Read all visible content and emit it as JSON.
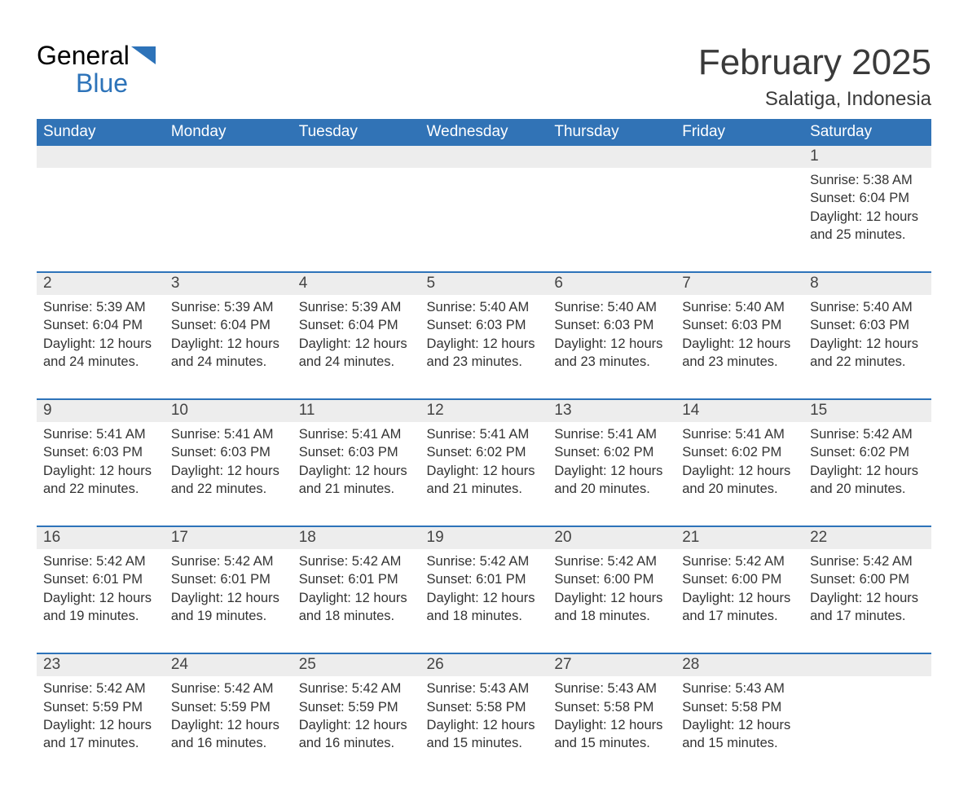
{
  "logo": {
    "text_general": "General",
    "text_blue": "Blue",
    "icon_color": "#2d73b9"
  },
  "title": "February 2025",
  "location": "Salatiga, Indonesia",
  "colors": {
    "header_bg": "#3173b6",
    "header_text": "#ffffff",
    "daynum_bg": "#ededed",
    "week_divider": "#2d73b9",
    "body_text": "#333333",
    "page_bg": "#ffffff"
  },
  "weekdays": [
    "Sunday",
    "Monday",
    "Tuesday",
    "Wednesday",
    "Thursday",
    "Friday",
    "Saturday"
  ],
  "weeks": [
    [
      null,
      null,
      null,
      null,
      null,
      null,
      {
        "n": "1",
        "sunrise": "5:38 AM",
        "sunset": "6:04 PM",
        "daylight": "12 hours and 25 minutes."
      }
    ],
    [
      {
        "n": "2",
        "sunrise": "5:39 AM",
        "sunset": "6:04 PM",
        "daylight": "12 hours and 24 minutes."
      },
      {
        "n": "3",
        "sunrise": "5:39 AM",
        "sunset": "6:04 PM",
        "daylight": "12 hours and 24 minutes."
      },
      {
        "n": "4",
        "sunrise": "5:39 AM",
        "sunset": "6:04 PM",
        "daylight": "12 hours and 24 minutes."
      },
      {
        "n": "5",
        "sunrise": "5:40 AM",
        "sunset": "6:03 PM",
        "daylight": "12 hours and 23 minutes."
      },
      {
        "n": "6",
        "sunrise": "5:40 AM",
        "sunset": "6:03 PM",
        "daylight": "12 hours and 23 minutes."
      },
      {
        "n": "7",
        "sunrise": "5:40 AM",
        "sunset": "6:03 PM",
        "daylight": "12 hours and 23 minutes."
      },
      {
        "n": "8",
        "sunrise": "5:40 AM",
        "sunset": "6:03 PM",
        "daylight": "12 hours and 22 minutes."
      }
    ],
    [
      {
        "n": "9",
        "sunrise": "5:41 AM",
        "sunset": "6:03 PM",
        "daylight": "12 hours and 22 minutes."
      },
      {
        "n": "10",
        "sunrise": "5:41 AM",
        "sunset": "6:03 PM",
        "daylight": "12 hours and 22 minutes."
      },
      {
        "n": "11",
        "sunrise": "5:41 AM",
        "sunset": "6:03 PM",
        "daylight": "12 hours and 21 minutes."
      },
      {
        "n": "12",
        "sunrise": "5:41 AM",
        "sunset": "6:02 PM",
        "daylight": "12 hours and 21 minutes."
      },
      {
        "n": "13",
        "sunrise": "5:41 AM",
        "sunset": "6:02 PM",
        "daylight": "12 hours and 20 minutes."
      },
      {
        "n": "14",
        "sunrise": "5:41 AM",
        "sunset": "6:02 PM",
        "daylight": "12 hours and 20 minutes."
      },
      {
        "n": "15",
        "sunrise": "5:42 AM",
        "sunset": "6:02 PM",
        "daylight": "12 hours and 20 minutes."
      }
    ],
    [
      {
        "n": "16",
        "sunrise": "5:42 AM",
        "sunset": "6:01 PM",
        "daylight": "12 hours and 19 minutes."
      },
      {
        "n": "17",
        "sunrise": "5:42 AM",
        "sunset": "6:01 PM",
        "daylight": "12 hours and 19 minutes."
      },
      {
        "n": "18",
        "sunrise": "5:42 AM",
        "sunset": "6:01 PM",
        "daylight": "12 hours and 18 minutes."
      },
      {
        "n": "19",
        "sunrise": "5:42 AM",
        "sunset": "6:01 PM",
        "daylight": "12 hours and 18 minutes."
      },
      {
        "n": "20",
        "sunrise": "5:42 AM",
        "sunset": "6:00 PM",
        "daylight": "12 hours and 18 minutes."
      },
      {
        "n": "21",
        "sunrise": "5:42 AM",
        "sunset": "6:00 PM",
        "daylight": "12 hours and 17 minutes."
      },
      {
        "n": "22",
        "sunrise": "5:42 AM",
        "sunset": "6:00 PM",
        "daylight": "12 hours and 17 minutes."
      }
    ],
    [
      {
        "n": "23",
        "sunrise": "5:42 AM",
        "sunset": "5:59 PM",
        "daylight": "12 hours and 17 minutes."
      },
      {
        "n": "24",
        "sunrise": "5:42 AM",
        "sunset": "5:59 PM",
        "daylight": "12 hours and 16 minutes."
      },
      {
        "n": "25",
        "sunrise": "5:42 AM",
        "sunset": "5:59 PM",
        "daylight": "12 hours and 16 minutes."
      },
      {
        "n": "26",
        "sunrise": "5:43 AM",
        "sunset": "5:58 PM",
        "daylight": "12 hours and 15 minutes."
      },
      {
        "n": "27",
        "sunrise": "5:43 AM",
        "sunset": "5:58 PM",
        "daylight": "12 hours and 15 minutes."
      },
      {
        "n": "28",
        "sunrise": "5:43 AM",
        "sunset": "5:58 PM",
        "daylight": "12 hours and 15 minutes."
      },
      null
    ]
  ],
  "labels": {
    "sunrise": "Sunrise: ",
    "sunset": "Sunset: ",
    "daylight": "Daylight: "
  }
}
